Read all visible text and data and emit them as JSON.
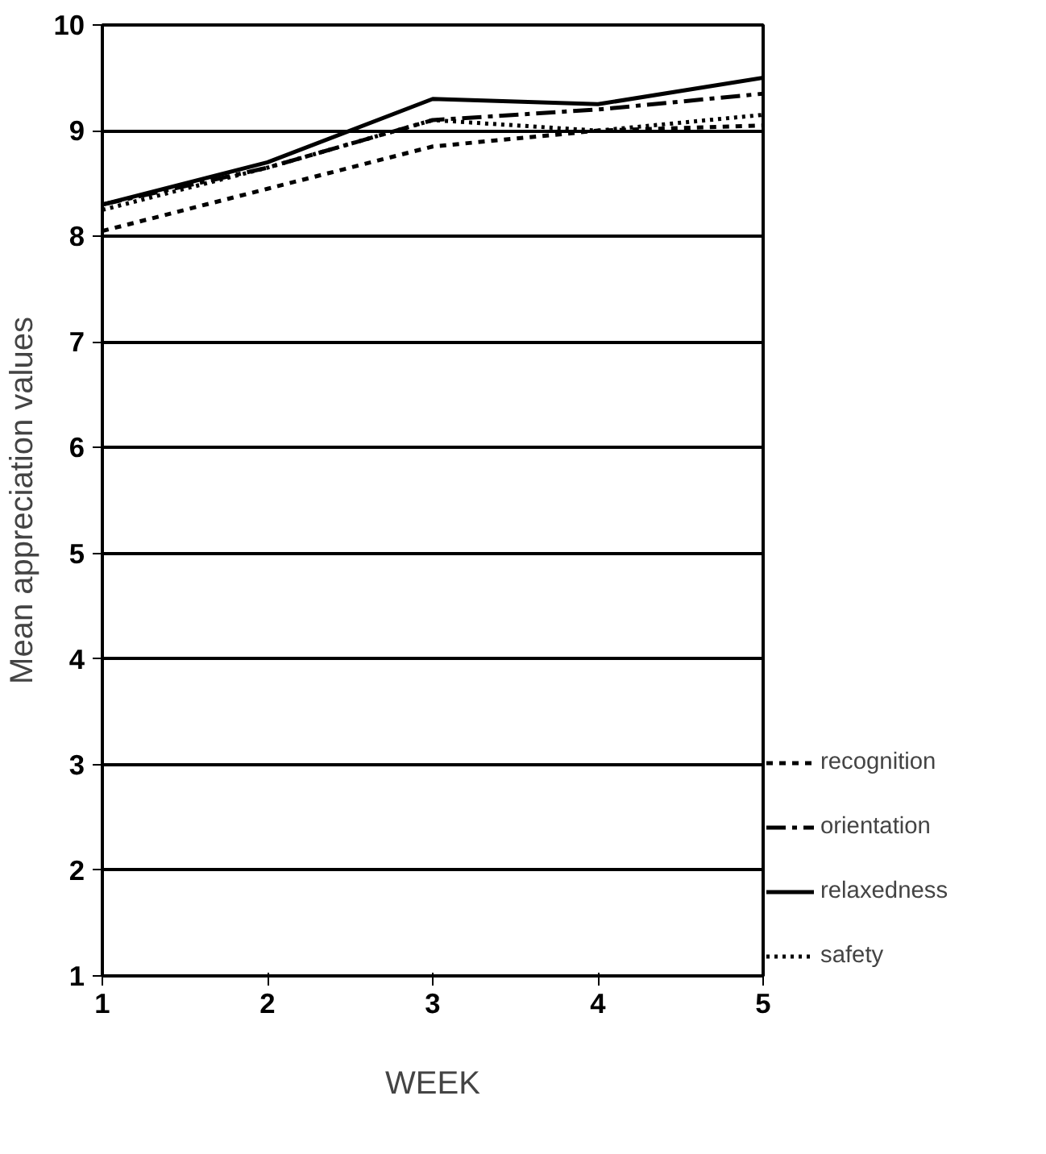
{
  "chart_data": {
    "type": "line",
    "xlabel": "WEEK",
    "ylabel": "Mean appreciation values",
    "x": [
      1,
      2,
      3,
      4,
      5
    ],
    "series": [
      {
        "name": "recognition",
        "color": "#000000",
        "line_style": "dashed",
        "values": [
          8.05,
          8.45,
          8.85,
          9.0,
          9.05
        ]
      },
      {
        "name": "orientation",
        "color": "#000000",
        "line_style": "dashdot",
        "values": [
          8.3,
          8.65,
          9.1,
          9.2,
          9.35
        ]
      },
      {
        "name": "relaxedness",
        "color": "#000000",
        "line_style": "solid",
        "values": [
          8.3,
          8.7,
          9.3,
          9.25,
          9.5
        ]
      },
      {
        "name": "safety",
        "color": "#000000",
        "line_style": "dotted",
        "values": [
          8.25,
          8.65,
          9.1,
          9.0,
          9.15
        ]
      }
    ],
    "xlim": [
      1,
      5
    ],
    "ylim": [
      1,
      10
    ],
    "xticks": [
      1,
      2,
      3,
      4,
      5
    ],
    "yticks": [
      1,
      2,
      3,
      4,
      5,
      6,
      7,
      8,
      9,
      10
    ],
    "grid": "y",
    "legend": "right",
    "marker": "none"
  }
}
